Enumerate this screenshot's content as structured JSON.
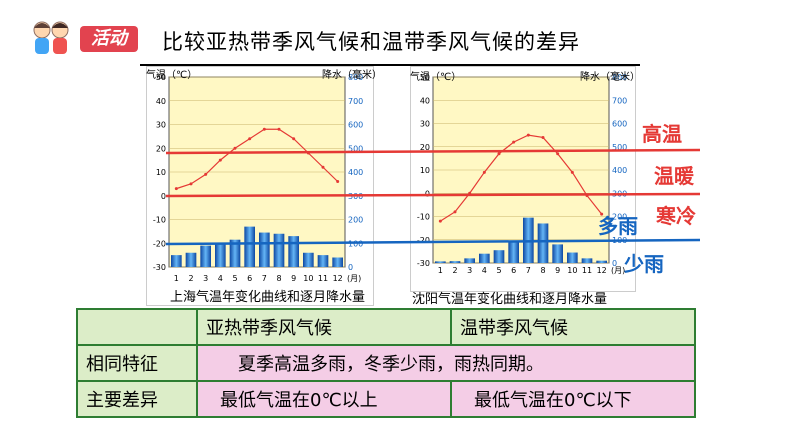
{
  "header": {
    "badge_label": "活动",
    "title": "比较亚热带季风气候和温带季风气候的差异"
  },
  "charts": [
    {
      "caption": "上海气温年变化曲线和逐月降水量",
      "left_axis_title": "气温（℃）",
      "right_axis_title": "降水（毫米）",
      "x_unit": "(月)"
    },
    {
      "caption": "沈阳气温年变化曲线和逐月降水量",
      "left_axis_title": "气温（℃）",
      "right_axis_title": "降水（毫米）",
      "x_unit": "(月)"
    }
  ],
  "annotations": {
    "high_temp": "高温",
    "warm": "温暖",
    "cold": "寒冷",
    "much_rain": "多雨",
    "little_rain": "少雨",
    "colors": {
      "red": "#e53935",
      "blue": "#1565c0"
    }
  },
  "chart_data": [
    {
      "type": "bar",
      "title": "上海气温年变化曲线和逐月降水量",
      "categories": [
        "1",
        "2",
        "3",
        "4",
        "5",
        "6",
        "7",
        "8",
        "9",
        "10",
        "11",
        "12"
      ],
      "y_ticks": [
        "50",
        "40",
        "30",
        "20",
        "10",
        "0",
        "-10",
        "-20",
        "-30"
      ],
      "y2_ticks": [
        "800",
        "700",
        "600",
        "500",
        "400",
        "300",
        "200",
        "100",
        "0"
      ],
      "ylim": [
        -30,
        50
      ],
      "y2lim": [
        0,
        800
      ],
      "series": [
        {
          "values": [
            3,
            5,
            9,
            15,
            20,
            24,
            28,
            28,
            24,
            18,
            12,
            6
          ]
        },
        {
          "values": [
            50,
            60,
            90,
            95,
            115,
            170,
            145,
            140,
            130,
            60,
            50,
            40
          ]
        }
      ]
    },
    {
      "type": "bar",
      "title": "沈阳气温年变化曲线和逐月降水量",
      "categories": [
        "1",
        "2",
        "3",
        "4",
        "5",
        "6",
        "7",
        "8",
        "9",
        "10",
        "11",
        "12"
      ],
      "y_ticks": [
        "50",
        "40",
        "30",
        "20",
        "10",
        "0",
        "-10",
        "-20",
        "-30"
      ],
      "y2_ticks": [
        "800",
        "700",
        "600",
        "500",
        "400",
        "300",
        "200",
        "100",
        "0"
      ],
      "ylim": [
        -30,
        50
      ],
      "y2lim": [
        0,
        800
      ],
      "series": [
        {
          "values": [
            -12,
            -8,
            0,
            9,
            17,
            22,
            25,
            24,
            17,
            9,
            -1,
            -9
          ]
        },
        {
          "values": [
            7,
            8,
            20,
            40,
            55,
            95,
            195,
            170,
            80,
            45,
            20,
            10
          ]
        }
      ]
    }
  ],
  "table": {
    "headers": [
      "",
      "亚热带季风气候",
      "温带季风气候"
    ],
    "rows": [
      {
        "label": "相同特征",
        "merged": "夏季高温多雨，冬季少雨，雨热同期。"
      },
      {
        "label": "主要差异",
        "col1": "最低气温在0℃以上",
        "col2": "最低气温在0℃以下"
      }
    ]
  }
}
